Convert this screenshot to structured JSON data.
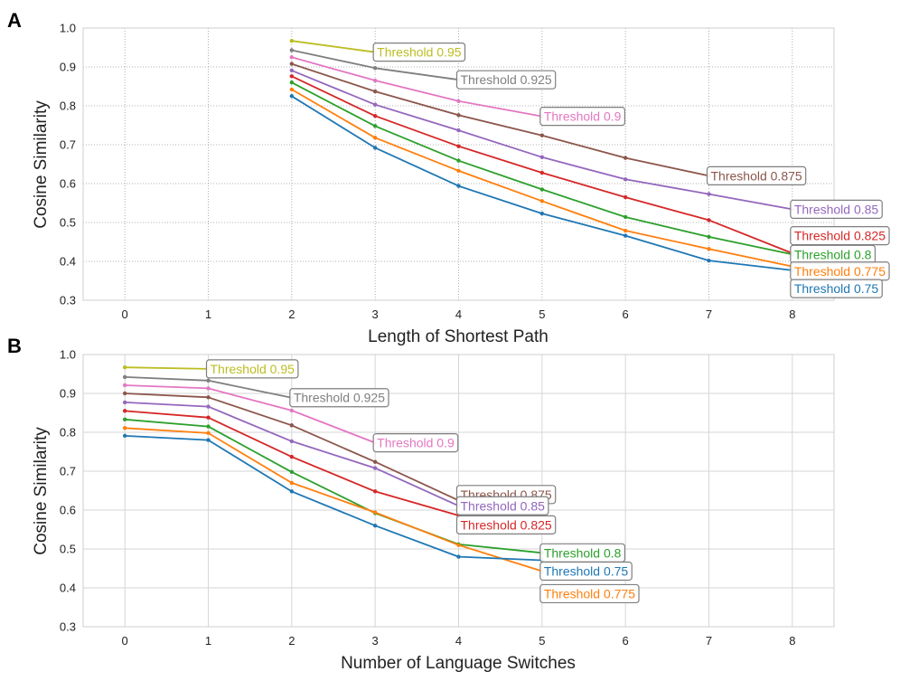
{
  "chart_data": [
    {
      "panel": "A",
      "type": "line",
      "xlabel": "Length of Shortest Path",
      "ylabel": "Cosine Similarity",
      "xlim": [
        -0.5,
        8.5
      ],
      "ylim": [
        0.3,
        1.0
      ],
      "xticks": [
        "0",
        "1",
        "2",
        "3",
        "4",
        "5",
        "6",
        "7",
        "8"
      ],
      "yticks": [
        "0.3",
        "0.4",
        "0.5",
        "0.6",
        "0.7",
        "0.8",
        "0.9",
        "1.0"
      ],
      "grid": "dotted",
      "series": [
        {
          "name": "Threshold 0.95",
          "color": "#bcbd22",
          "x": [
            2,
            3
          ],
          "y": [
            0.967,
            0.938
          ]
        },
        {
          "name": "Threshold 0.925",
          "color": "#7f7f7f",
          "x": [
            2,
            3,
            4
          ],
          "y": [
            0.943,
            0.897,
            0.867
          ]
        },
        {
          "name": "Threshold 0.9",
          "color": "#e377c2",
          "x": [
            2,
            3,
            4,
            5
          ],
          "y": [
            0.925,
            0.865,
            0.812,
            0.773
          ]
        },
        {
          "name": "Threshold 0.875",
          "color": "#8c564b",
          "x": [
            2,
            3,
            4,
            5,
            6,
            7
          ],
          "y": [
            0.908,
            0.837,
            0.776,
            0.724,
            0.666,
            0.62
          ]
        },
        {
          "name": "Threshold 0.85",
          "color": "#9467bd",
          "x": [
            2,
            3,
            4,
            5,
            6,
            7,
            8
          ],
          "y": [
            0.891,
            0.803,
            0.737,
            0.668,
            0.611,
            0.573,
            0.534
          ]
        },
        {
          "name": "Threshold 0.825",
          "color": "#d62728",
          "x": [
            2,
            3,
            4,
            5,
            6,
            7,
            8
          ],
          "y": [
            0.876,
            0.774,
            0.696,
            0.628,
            0.565,
            0.506,
            0.421
          ]
        },
        {
          "name": "Threshold 0.8",
          "color": "#2ca02c",
          "x": [
            2,
            3,
            4,
            5,
            6,
            7,
            8
          ],
          "y": [
            0.86,
            0.748,
            0.659,
            0.585,
            0.514,
            0.463,
            0.418
          ]
        },
        {
          "name": "Threshold 0.775",
          "color": "#ff7f0e",
          "x": [
            2,
            3,
            4,
            5,
            6,
            7,
            8
          ],
          "y": [
            0.842,
            0.718,
            0.633,
            0.555,
            0.479,
            0.432,
            0.387
          ]
        },
        {
          "name": "Threshold 0.75",
          "color": "#1f77b4",
          "x": [
            2,
            3,
            4,
            5,
            6,
            7,
            8
          ],
          "y": [
            0.825,
            0.692,
            0.594,
            0.523,
            0.466,
            0.402,
            0.377
          ]
        }
      ],
      "annotations": [
        {
          "text": "Threshold 0.95",
          "series": "Threshold 0.95",
          "at": [
            3,
            0.938
          ],
          "position": "right"
        },
        {
          "text": "Threshold 0.925",
          "series": "Threshold 0.925",
          "at": [
            4,
            0.867
          ],
          "position": "right"
        },
        {
          "text": "Threshold 0.9",
          "series": "Threshold 0.9",
          "at": [
            5,
            0.773
          ],
          "position": "right"
        },
        {
          "text": "Threshold 0.875",
          "series": "Threshold 0.875",
          "at": [
            7,
            0.62
          ],
          "position": "right"
        },
        {
          "text": "Threshold 0.85",
          "series": "Threshold 0.85",
          "at": [
            8,
            0.534
          ],
          "position": "right"
        },
        {
          "text": "Threshold 0.825",
          "series": "Threshold 0.825",
          "at": [
            8,
            0.466
          ],
          "position": "right"
        },
        {
          "text": "Threshold 0.8",
          "series": "Threshold 0.8",
          "at": [
            8,
            0.418
          ],
          "position": "right"
        },
        {
          "text": "Threshold 0.775",
          "series": "Threshold 0.775",
          "at": [
            8,
            0.375
          ],
          "position": "right"
        },
        {
          "text": "Threshold 0.75",
          "series": "Threshold 0.75",
          "at": [
            8,
            0.33
          ],
          "position": "right"
        }
      ]
    },
    {
      "panel": "B",
      "type": "line",
      "xlabel": "Number of Language Switches",
      "ylabel": "Cosine Similarity",
      "xlim": [
        -0.5,
        8.5
      ],
      "ylim": [
        0.3,
        1.0
      ],
      "xticks": [
        "0",
        "1",
        "2",
        "3",
        "4",
        "5",
        "6",
        "7",
        "8"
      ],
      "yticks": [
        "0.3",
        "0.4",
        "0.5",
        "0.6",
        "0.7",
        "0.8",
        "0.9",
        "1.0"
      ],
      "grid": "solid",
      "series": [
        {
          "name": "Threshold 0.95",
          "color": "#bcbd22",
          "x": [
            0,
            1
          ],
          "y": [
            0.967,
            0.963
          ]
        },
        {
          "name": "Threshold 0.925",
          "color": "#7f7f7f",
          "x": [
            0,
            1,
            2
          ],
          "y": [
            0.942,
            0.933,
            0.889
          ]
        },
        {
          "name": "Threshold 0.9",
          "color": "#e377c2",
          "x": [
            0,
            1,
            2,
            3
          ],
          "y": [
            0.921,
            0.913,
            0.856,
            0.773
          ]
        },
        {
          "name": "Threshold 0.875",
          "color": "#8c564b",
          "x": [
            0,
            1,
            2,
            3,
            4
          ],
          "y": [
            0.9,
            0.89,
            0.818,
            0.724,
            0.625
          ]
        },
        {
          "name": "Threshold 0.85",
          "color": "#9467bd",
          "x": [
            0,
            1,
            2,
            3,
            4
          ],
          "y": [
            0.877,
            0.866,
            0.777,
            0.708,
            0.611
          ]
        },
        {
          "name": "Threshold 0.825",
          "color": "#d62728",
          "x": [
            0,
            1,
            2,
            3,
            4
          ],
          "y": [
            0.855,
            0.838,
            0.737,
            0.648,
            0.586
          ]
        },
        {
          "name": "Threshold 0.8",
          "color": "#2ca02c",
          "x": [
            0,
            1,
            2,
            3,
            4,
            5
          ],
          "y": [
            0.833,
            0.815,
            0.698,
            0.592,
            0.512,
            0.49
          ]
        },
        {
          "name": "Threshold 0.775",
          "color": "#ff7f0e",
          "x": [
            0,
            1,
            2,
            3,
            4,
            5
          ],
          "y": [
            0.811,
            0.798,
            0.67,
            0.594,
            0.51,
            0.443
          ]
        },
        {
          "name": "Threshold 0.75",
          "color": "#1f77b4",
          "x": [
            0,
            1,
            2,
            3,
            4,
            5
          ],
          "y": [
            0.791,
            0.78,
            0.648,
            0.56,
            0.48,
            0.471
          ]
        }
      ],
      "annotations": [
        {
          "text": "Threshold 0.95",
          "series": "Threshold 0.95",
          "at": [
            1,
            0.963
          ],
          "position": "right"
        },
        {
          "text": "Threshold 0.925",
          "series": "Threshold 0.925",
          "at": [
            2,
            0.889
          ],
          "position": "right"
        },
        {
          "text": "Threshold 0.9",
          "series": "Threshold 0.9",
          "at": [
            3,
            0.773
          ],
          "position": "right"
        },
        {
          "text": "Threshold 0.875",
          "series": "Threshold 0.875",
          "at": [
            4,
            0.64
          ],
          "position": "right"
        },
        {
          "text": "Threshold 0.85",
          "series": "Threshold 0.85",
          "at": [
            4,
            0.611
          ],
          "position": "right"
        },
        {
          "text": "Threshold 0.825",
          "series": "Threshold 0.825",
          "at": [
            4,
            0.562
          ],
          "position": "right"
        },
        {
          "text": "Threshold 0.8",
          "series": "Threshold 0.8",
          "at": [
            5,
            0.49
          ],
          "position": "right"
        },
        {
          "text": "Threshold 0.75",
          "series": "Threshold 0.75",
          "at": [
            5,
            0.443
          ],
          "position": "right"
        },
        {
          "text": "Threshold 0.775",
          "series": "Threshold 0.775",
          "at": [
            5,
            0.385
          ],
          "position": "right"
        }
      ]
    }
  ]
}
